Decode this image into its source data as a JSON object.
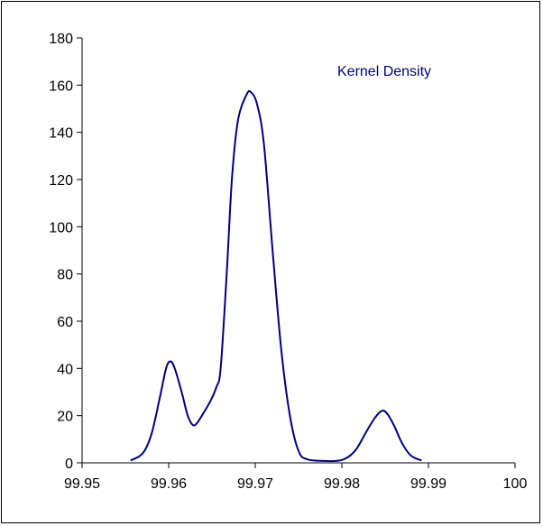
{
  "chart_data": {
    "type": "line",
    "title": "",
    "xlabel": "",
    "ylabel": "",
    "xlim": [
      99.95,
      100
    ],
    "ylim": [
      0,
      180
    ],
    "x_ticks": [
      99.95,
      99.96,
      99.97,
      99.98,
      99.99,
      100
    ],
    "x_tick_labels": [
      "99.95",
      "99.96",
      "99.97",
      "99.98",
      "99.99",
      "100"
    ],
    "y_ticks": [
      0,
      20,
      40,
      60,
      80,
      100,
      120,
      140,
      160,
      180
    ],
    "y_tick_labels": [
      "0",
      "20",
      "40",
      "60",
      "80",
      "100",
      "120",
      "140",
      "160",
      "180"
    ],
    "grid": false,
    "legend_position": "top-right",
    "series": [
      {
        "name": "Kernel Density",
        "color": "#000080",
        "points": [
          [
            99.9556,
            1
          ],
          [
            99.957,
            4
          ],
          [
            99.958,
            12
          ],
          [
            99.959,
            28
          ],
          [
            99.9597,
            40
          ],
          [
            99.9602,
            43
          ],
          [
            99.9607,
            40
          ],
          [
            99.9615,
            30
          ],
          [
            99.9622,
            20
          ],
          [
            99.9628,
            16
          ],
          [
            99.9633,
            17
          ],
          [
            99.964,
            21
          ],
          [
            99.9648,
            26
          ],
          [
            99.9655,
            32
          ],
          [
            99.966,
            40
          ],
          [
            99.9667,
            80
          ],
          [
            99.9673,
            120
          ],
          [
            99.968,
            145
          ],
          [
            99.969,
            156
          ],
          [
            99.9695,
            157
          ],
          [
            99.9702,
            152
          ],
          [
            99.971,
            135
          ],
          [
            99.972,
            90
          ],
          [
            99.973,
            48
          ],
          [
            99.974,
            20
          ],
          [
            99.975,
            5
          ],
          [
            99.976,
            1.5
          ],
          [
            99.978,
            0.8
          ],
          [
            99.98,
            1.2
          ],
          [
            99.9815,
            5
          ],
          [
            99.9828,
            13
          ],
          [
            99.9838,
            19
          ],
          [
            99.9846,
            22
          ],
          [
            99.9852,
            21
          ],
          [
            99.986,
            16
          ],
          [
            99.987,
            8
          ],
          [
            99.988,
            3
          ],
          [
            99.9892,
            1
          ]
        ]
      }
    ]
  },
  "colors": {
    "series_line": "#000080",
    "legend_text": "#000080",
    "axis": "#000000"
  }
}
